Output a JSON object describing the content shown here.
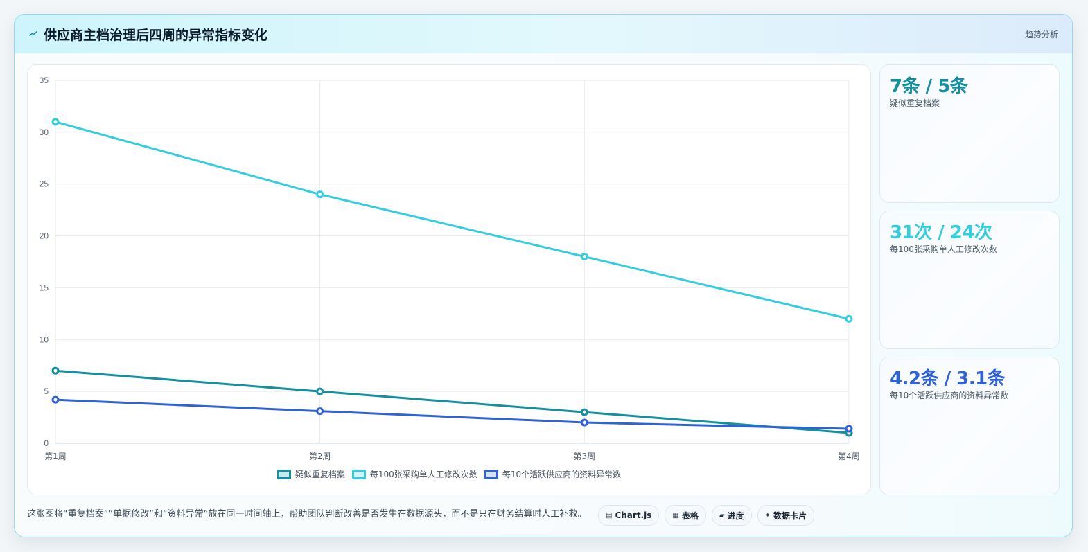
{
  "header": {
    "title": "供应商主档治理后四周的异常指标变化",
    "tag": "趋势分析",
    "icon": "lightning-icon"
  },
  "colors": {
    "teal": "#138fa0",
    "cyan": "#34cde0",
    "blue": "#2f62d6"
  },
  "chart_data": {
    "type": "line",
    "categories": [
      "第1周",
      "第2周",
      "第3周",
      "第4周"
    ],
    "ylim": [
      0,
      35
    ],
    "yticks": [
      0,
      5,
      10,
      15,
      20,
      25,
      30,
      35
    ],
    "grid": true,
    "legend_position": "bottom",
    "series": [
      {
        "name": "疑似重复档案",
        "values": [
          7,
          5,
          3,
          1
        ],
        "color": "#138fa0"
      },
      {
        "name": "每100张采购单人工修改次数",
        "values": [
          31,
          24,
          18,
          12
        ],
        "color": "#34cde0"
      },
      {
        "name": "每10个活跃供应商的资料异常数",
        "values": [
          4.2,
          3.1,
          2.0,
          1.4
        ],
        "color": "#2f62d6"
      }
    ]
  },
  "stats": [
    {
      "value": "7条 / 5条",
      "label": "疑似重复档案",
      "color": "#138fa0"
    },
    {
      "value": "31次 / 24次",
      "label": "每100张采购单人工修改次数",
      "color": "#34cde0"
    },
    {
      "value": "4.2条 / 3.1条",
      "label": "每10个活跃供应商的资料异常数",
      "color": "#2f62d6"
    }
  ],
  "footer": {
    "note": "这张图将“重复档案”“单据修改”和“资料异常”放在同一时间轴上，帮助团队判断改善是否发生在数据源头，而不是只在财务结算时人工补救。",
    "chips": [
      {
        "icon": "▤",
        "label": "Chart.js",
        "icon_name": "chart-icon"
      },
      {
        "icon": "▦",
        "label": "表格",
        "icon_name": "table-icon"
      },
      {
        "icon": "▰",
        "label": "进度",
        "icon_name": "progress-icon"
      },
      {
        "icon": "✦",
        "label": "数据卡片",
        "icon_name": "sparkle-icon"
      }
    ]
  }
}
